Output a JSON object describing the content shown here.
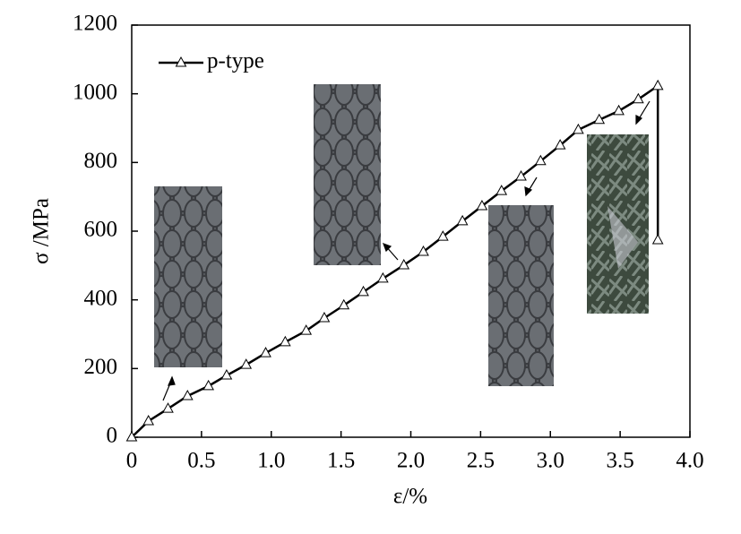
{
  "chart_data": {
    "type": "line",
    "xlabel": "ε/%",
    "ylabel": "σ /MPa",
    "xlim": [
      0,
      4.0
    ],
    "ylim": [
      0,
      1200
    ],
    "xticks": [
      0,
      0.5,
      {
        "value": 1.0,
        "label": "1.0"
      },
      1.5,
      {
        "value": 2.0,
        "label": "2.0"
      },
      2.5,
      {
        "value": 3.0,
        "label": "3.0"
      },
      3.5,
      {
        "value": 4.0,
        "label": "4.0"
      }
    ],
    "yticks": [
      0,
      200,
      400,
      600,
      800,
      1000,
      1200
    ],
    "legend": "top-left",
    "series": [
      {
        "name": "p-type",
        "color": "#000000",
        "x": [
          0,
          0.12,
          0.26,
          0.4,
          0.55,
          0.68,
          0.82,
          0.96,
          1.1,
          1.25,
          1.38,
          1.52,
          1.66,
          1.8,
          1.95,
          2.09,
          2.23,
          2.37,
          2.51,
          2.65,
          2.79,
          2.93,
          3.07,
          3.2,
          3.35,
          3.49,
          3.63,
          3.77,
          3.77
        ],
        "values": [
          0,
          47,
          83,
          120,
          149,
          180,
          211,
          245,
          277,
          310,
          347,
          384,
          423,
          462,
          501,
          540,
          584,
          629,
          673,
          717,
          759,
          804,
          850,
          895,
          924,
          950,
          984,
          1023,
          574
        ]
      }
    ]
  }
}
